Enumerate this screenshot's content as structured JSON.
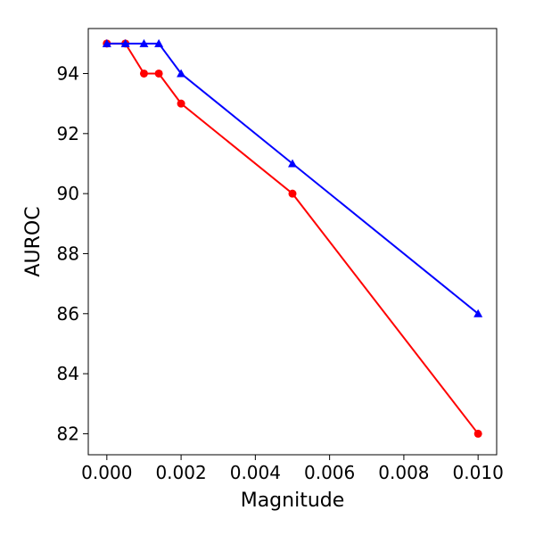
{
  "chart_data": {
    "type": "line",
    "title": "",
    "xlabel": "Magnitude",
    "ylabel": "AUROC",
    "xlim": [
      -0.0005,
      0.0105
    ],
    "ylim": [
      81.3,
      95.5
    ],
    "grid": false,
    "x_ticks": [
      0.0,
      0.002,
      0.004,
      0.006,
      0.008,
      0.01
    ],
    "x_tick_labels": [
      "0.000",
      "0.002",
      "0.004",
      "0.006",
      "0.008",
      "0.010"
    ],
    "y_ticks": [
      82,
      84,
      86,
      88,
      90,
      92,
      94
    ],
    "y_tick_labels": [
      "82",
      "84",
      "86",
      "88",
      "90",
      "92",
      "94"
    ],
    "series": [
      {
        "color": "#ff0000",
        "marker": "circle",
        "x": [
          0.0,
          0.0005,
          0.001,
          0.0014,
          0.002,
          0.005,
          0.01
        ],
        "y": [
          95,
          95,
          94,
          94,
          93,
          90,
          82
        ]
      },
      {
        "color": "#0000ff",
        "marker": "triangle",
        "x": [
          0.0,
          0.0005,
          0.001,
          0.0014,
          0.002,
          0.005,
          0.01
        ],
        "y": [
          95,
          95,
          95,
          95,
          94,
          91,
          86
        ]
      }
    ]
  }
}
